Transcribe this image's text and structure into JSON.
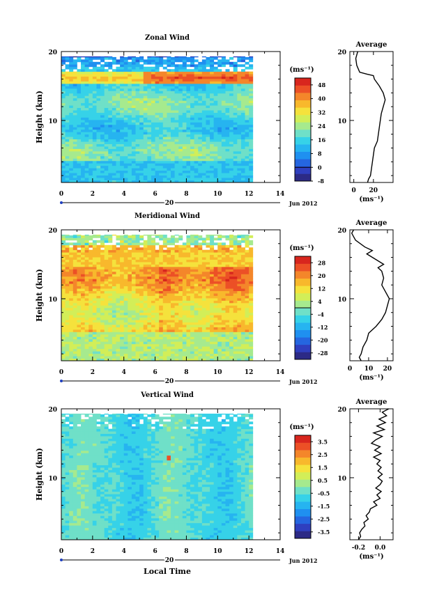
{
  "chart_data": [
    {
      "type": "heatmap",
      "title": "Zonal Wind",
      "xlabel": "",
      "ylabel": "Height (km)",
      "xlim": [
        0,
        14
      ],
      "ylim": [
        1,
        20
      ],
      "x_ticks": [
        "0",
        "2",
        "4",
        "6",
        "8",
        "10",
        "12",
        "14"
      ],
      "y_ticks": [
        "10",
        "20"
      ],
      "date_day": "20",
      "date_month": "Jun 2012",
      "colorbar_unit": "(ms⁻¹)",
      "colorbar_ticks": [
        "48",
        "40",
        "32",
        "24",
        "16",
        "8",
        "0",
        "-8"
      ],
      "colorbar_range": [
        -8,
        52
      ],
      "colorbar_zero_line": 0,
      "profile": {
        "title": "Average",
        "xlabel": "(ms⁻¹)",
        "x_ticks": [
          "0",
          "20"
        ],
        "xlim": [
          -4,
          40
        ],
        "y_ticks": [
          "10",
          "20"
        ],
        "points": [
          [
            4,
            20
          ],
          [
            3,
            19.5
          ],
          [
            2,
            19
          ],
          [
            3,
            18
          ],
          [
            6,
            17
          ],
          [
            14,
            16.7
          ],
          [
            20,
            16.5
          ],
          [
            21,
            16
          ],
          [
            26,
            15
          ],
          [
            30,
            14
          ],
          [
            32,
            13
          ],
          [
            30,
            12
          ],
          [
            28,
            11
          ],
          [
            27,
            10
          ],
          [
            26,
            9
          ],
          [
            25,
            8
          ],
          [
            24,
            7
          ],
          [
            21,
            6
          ],
          [
            20,
            5
          ],
          [
            19,
            4
          ],
          [
            18,
            3
          ],
          [
            17,
            2
          ],
          [
            15,
            1.5
          ],
          [
            14,
            1
          ]
        ]
      }
    },
    {
      "type": "heatmap",
      "title": "Meridional Wind",
      "xlabel": "",
      "ylabel": "Height (km)",
      "xlim": [
        0,
        14
      ],
      "ylim": [
        1,
        20
      ],
      "x_ticks": [
        "0",
        "2",
        "4",
        "6",
        "8",
        "10",
        "12",
        "14"
      ],
      "y_ticks": [
        "10",
        "20"
      ],
      "date_day": "20",
      "date_month": "Jun 2012",
      "colorbar_unit": "(ms⁻¹)",
      "colorbar_ticks": [
        "28",
        "20",
        "12",
        "4",
        "-4",
        "-12",
        "-20",
        "-28"
      ],
      "colorbar_range": [
        -32,
        32
      ],
      "colorbar_zero_line": 0,
      "profile": {
        "title": "Average",
        "xlabel": "(ms⁻¹)",
        "x_ticks": [
          "0",
          "10",
          "20"
        ],
        "xlim": [
          0,
          23
        ],
        "y_ticks": [
          "10",
          "20"
        ],
        "points": [
          [
            2,
            20
          ],
          [
            1,
            19.5
          ],
          [
            3,
            18.5
          ],
          [
            8,
            17.5
          ],
          [
            12,
            17
          ],
          [
            9,
            16.5
          ],
          [
            15,
            15.5
          ],
          [
            18,
            15
          ],
          [
            15,
            14.5
          ],
          [
            17,
            14
          ],
          [
            18,
            13
          ],
          [
            17,
            12
          ],
          [
            19,
            11
          ],
          [
            21,
            10
          ],
          [
            20,
            9
          ],
          [
            19,
            8
          ],
          [
            17,
            7
          ],
          [
            14,
            6
          ],
          [
            10,
            5
          ],
          [
            9,
            4
          ],
          [
            7,
            3
          ],
          [
            6,
            2
          ],
          [
            5,
            1.5
          ],
          [
            6,
            1
          ]
        ]
      }
    },
    {
      "type": "heatmap",
      "title": "Vertical Wind",
      "xlabel": "Local Time",
      "ylabel": "Height (km)",
      "xlim": [
        0,
        14
      ],
      "ylim": [
        1,
        20
      ],
      "x_ticks": [
        "0",
        "2",
        "4",
        "6",
        "8",
        "10",
        "12",
        "14"
      ],
      "y_ticks": [
        "10",
        "20"
      ],
      "date_day": "20",
      "date_month": "Jun 2012",
      "colorbar_unit": "(ms⁻¹)",
      "colorbar_ticks": [
        "3.5",
        "2.5",
        "1.5",
        "0.5",
        "-0.5",
        "-1.5",
        "-2.5",
        "-3.5"
      ],
      "colorbar_range": [
        -4,
        4
      ],
      "colorbar_zero_line": null,
      "profile": {
        "title": "Average",
        "xlabel": "(ms⁻¹)",
        "x_ticks": [
          "-0.2",
          "0.0"
        ],
        "xlim": [
          -0.28,
          0.12
        ],
        "y_ticks": [
          "10",
          "20"
        ],
        "points": [
          [
            0.08,
            20
          ],
          [
            0.02,
            19.5
          ],
          [
            0.06,
            19
          ],
          [
            -0.01,
            18.5
          ],
          [
            0.05,
            18
          ],
          [
            -0.03,
            17.5
          ],
          [
            0.04,
            17
          ],
          [
            -0.06,
            16.5
          ],
          [
            0.02,
            16
          ],
          [
            -0.04,
            15.5
          ],
          [
            -0.08,
            15
          ],
          [
            0.0,
            14.5
          ],
          [
            -0.05,
            14
          ],
          [
            0.01,
            13.5
          ],
          [
            -0.06,
            13
          ],
          [
            0.0,
            12.5
          ],
          [
            -0.03,
            12
          ],
          [
            0.01,
            11.5
          ],
          [
            -0.02,
            11
          ],
          [
            0.02,
            10.5
          ],
          [
            -0.02,
            10
          ],
          [
            0.02,
            9.5
          ],
          [
            0.0,
            9
          ],
          [
            -0.04,
            8.5
          ],
          [
            0.01,
            8
          ],
          [
            -0.03,
            7.5
          ],
          [
            0.0,
            7
          ],
          [
            -0.06,
            6.5
          ],
          [
            -0.03,
            6
          ],
          [
            -0.09,
            5.5
          ],
          [
            -0.1,
            5
          ],
          [
            -0.13,
            4.5
          ],
          [
            -0.11,
            4
          ],
          [
            -0.15,
            3.5
          ],
          [
            -0.14,
            3
          ],
          [
            -0.17,
            2.5
          ],
          [
            -0.19,
            2
          ],
          [
            -0.18,
            1.5
          ],
          [
            -0.2,
            1
          ]
        ]
      }
    }
  ]
}
